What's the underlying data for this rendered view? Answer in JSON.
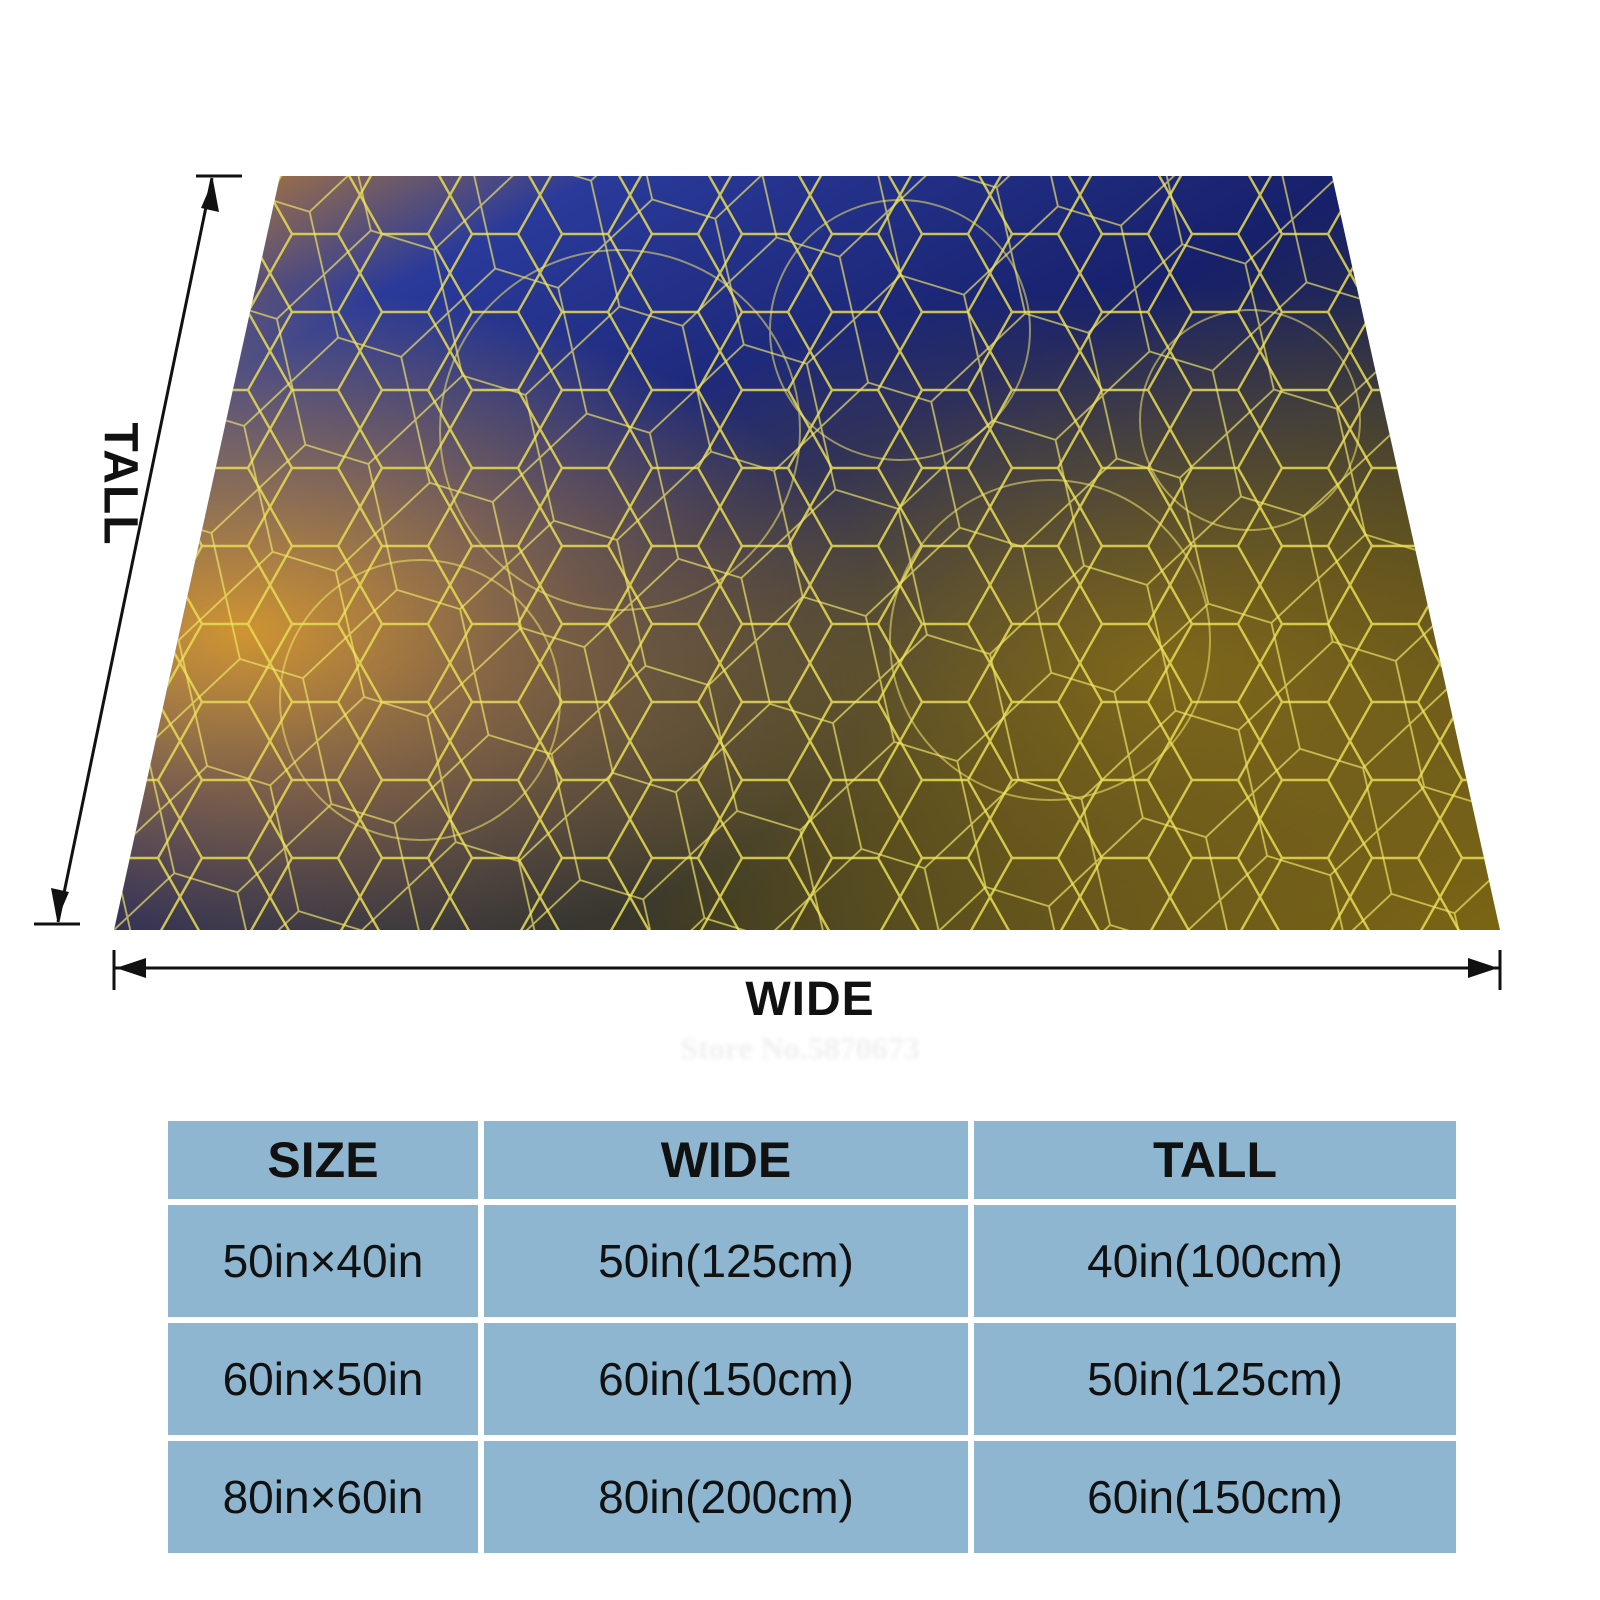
{
  "figure": {
    "wide_label": "WIDE",
    "tall_label": "TALL",
    "watermark": "Store No.5870673",
    "product": "blanket printed with yellow bubble-foam network on blue and amber background",
    "colors": {
      "deep_blue": "#1d2a78",
      "amber": "#c9821c",
      "gold": "#e6d23a",
      "olive": "#6b5a14"
    }
  },
  "table": {
    "headers": [
      "SIZE",
      "WIDE",
      "TALL"
    ],
    "rows": [
      [
        "50in×40in",
        "50in(125cm)",
        "40in(100cm)"
      ],
      [
        "60in×50in",
        "60in(150cm)",
        "50in(125cm)"
      ],
      [
        "80in×60in",
        "80in(200cm)",
        "60in(150cm)"
      ]
    ],
    "colors": {
      "cell_bg": "#8fb6d0",
      "border": "#ffffff"
    }
  }
}
